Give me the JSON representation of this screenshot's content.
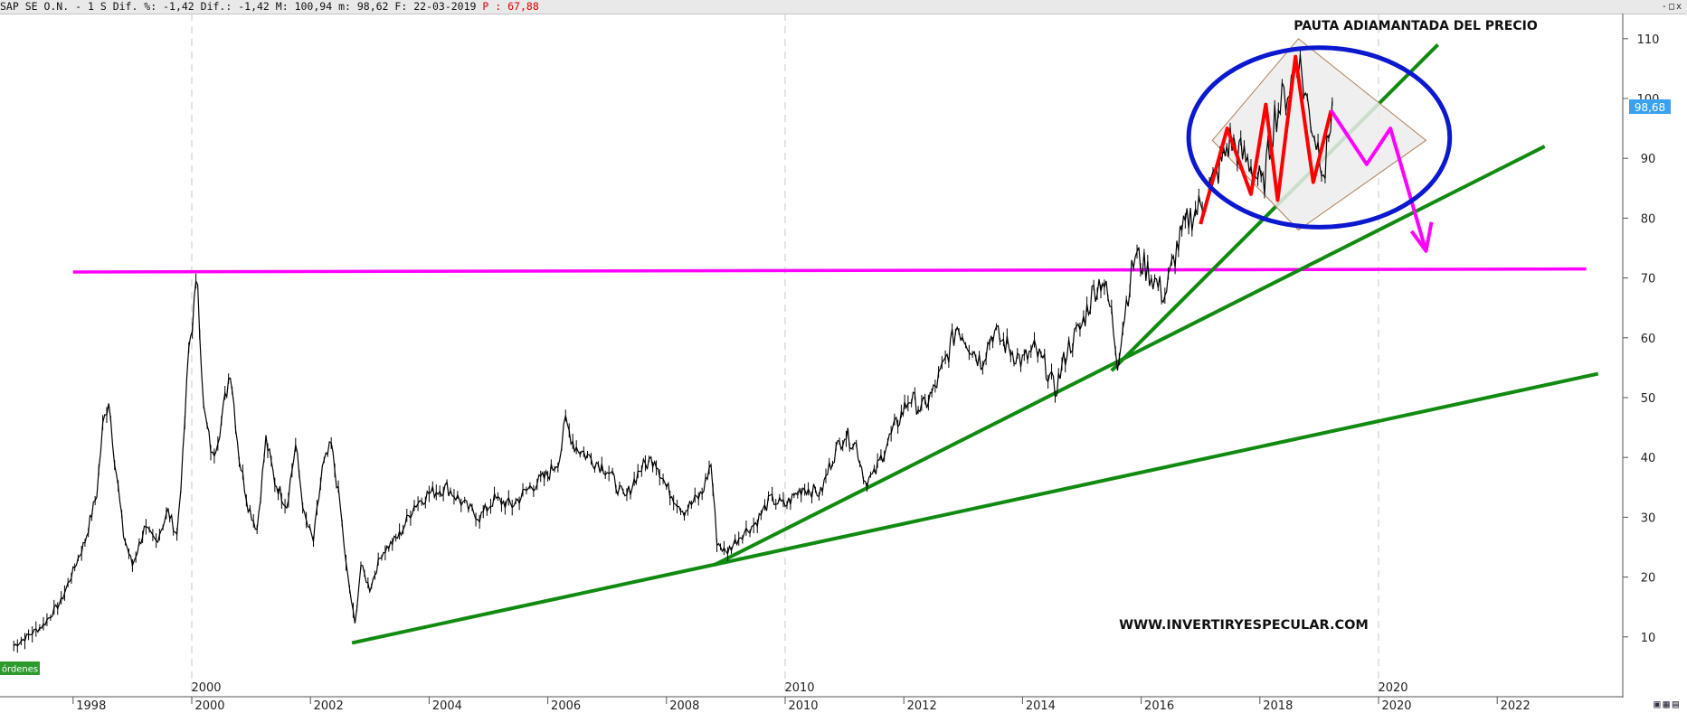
{
  "header": {
    "instrument": "SAP SE O.N.",
    "timeframe": "1 S",
    "dif_pct_label": "Dif. %:",
    "dif_pct": "-1,42",
    "dif_label": "Dif.:",
    "dif": "-1,42",
    "high_label": "M:",
    "high": "100,94",
    "low_label": "m:",
    "low": "98,62",
    "date_label": "F:",
    "date": "22-03-2019",
    "p_label": "P :",
    "p_value": "67,88"
  },
  "window_controls": [
    "-",
    "□",
    "x"
  ],
  "orders_button": "órdenes",
  "current_price_label": "98,68",
  "colors": {
    "price": "#000000",
    "support_line": "#ff00ff",
    "trend_lines": "#118a11",
    "ellipse": "#0b18cf",
    "highlight": "#ff0000",
    "projection": "#ff00ff",
    "diamond": "#b0805a",
    "price_badge": "#3aa0f0"
  },
  "annotations": {
    "title": "PAUTA ADIAMANTADA DEL PRECIO",
    "website": "WWW.INVERTIRYESPECULAR.COM"
  },
  "chart_data": {
    "type": "line",
    "title": "PAUTA ADIAMANTADA DEL PRECIO",
    "xlabel": "",
    "ylabel": "",
    "x_range": [
      1997.0,
      2023.7
    ],
    "ylim": [
      0,
      115
    ],
    "x_ticks": [
      "1998",
      "2000",
      "2002",
      "2004",
      "2006",
      "2008",
      "2010",
      "2012",
      "2014",
      "2016",
      "2018",
      "2020",
      "2022"
    ],
    "x_major_ticks": [
      "2000",
      "2010",
      "2020"
    ],
    "y_ticks": [
      10,
      20,
      30,
      40,
      50,
      60,
      70,
      80,
      90,
      100,
      110
    ],
    "grid": "vertical dashed at 2000, 2010, 2020",
    "series": [
      {
        "values": [
          [
            1997.0,
            8.5
          ],
          [
            1997.5,
            12
          ],
          [
            1997.8,
            16
          ],
          [
            1998.0,
            21
          ],
          [
            1998.2,
            26
          ],
          [
            1998.4,
            34
          ],
          [
            1998.5,
            45
          ],
          [
            1998.6,
            50
          ],
          [
            1998.7,
            40
          ],
          [
            1998.85,
            27
          ],
          [
            1999.0,
            22
          ],
          [
            1999.2,
            28
          ],
          [
            1999.4,
            26
          ],
          [
            1999.6,
            31
          ],
          [
            1999.75,
            27
          ],
          [
            1999.85,
            40
          ],
          [
            1999.95,
            58
          ],
          [
            2000.1,
            70
          ],
          [
            2000.2,
            48
          ],
          [
            2000.35,
            40
          ],
          [
            2000.5,
            46
          ],
          [
            2000.65,
            55
          ],
          [
            2000.8,
            40
          ],
          [
            2000.95,
            32
          ],
          [
            2001.1,
            28
          ],
          [
            2001.25,
            43
          ],
          [
            2001.4,
            36
          ],
          [
            2001.6,
            32
          ],
          [
            2001.75,
            42
          ],
          [
            2001.9,
            30
          ],
          [
            2002.05,
            26
          ],
          [
            2002.2,
            38
          ],
          [
            2002.35,
            42
          ],
          [
            2002.5,
            32
          ],
          [
            2002.6,
            22
          ],
          [
            2002.75,
            12
          ],
          [
            2002.85,
            22
          ],
          [
            2003.0,
            18
          ],
          [
            2003.2,
            24
          ],
          [
            2003.5,
            27
          ],
          [
            2003.75,
            32
          ],
          [
            2004.0,
            34
          ],
          [
            2004.3,
            35
          ],
          [
            2004.6,
            32
          ],
          [
            2004.85,
            30
          ],
          [
            2005.1,
            33
          ],
          [
            2005.4,
            32
          ],
          [
            2005.7,
            35
          ],
          [
            2006.0,
            37
          ],
          [
            2006.2,
            40
          ],
          [
            2006.3,
            46
          ],
          [
            2006.45,
            42
          ],
          [
            2006.7,
            40
          ],
          [
            2007.0,
            38
          ],
          [
            2007.3,
            33
          ],
          [
            2007.55,
            38
          ],
          [
            2007.8,
            40
          ],
          [
            2008.0,
            35
          ],
          [
            2008.3,
            31
          ],
          [
            2008.6,
            34
          ],
          [
            2008.75,
            39
          ],
          [
            2008.85,
            26
          ],
          [
            2009.0,
            24
          ],
          [
            2009.25,
            27
          ],
          [
            2009.5,
            29
          ],
          [
            2009.75,
            33
          ],
          [
            2010.0,
            32
          ],
          [
            2010.3,
            35
          ],
          [
            2010.6,
            34
          ],
          [
            2010.8,
            40
          ],
          [
            2011.0,
            44
          ],
          [
            2011.2,
            42
          ],
          [
            2011.35,
            36
          ],
          [
            2011.5,
            37
          ],
          [
            2011.7,
            42
          ],
          [
            2011.9,
            46
          ],
          [
            2012.1,
            50
          ],
          [
            2012.3,
            48
          ],
          [
            2012.5,
            51
          ],
          [
            2012.7,
            56
          ],
          [
            2012.9,
            62
          ],
          [
            2013.1,
            59
          ],
          [
            2013.3,
            56
          ],
          [
            2013.5,
            61
          ],
          [
            2013.8,
            58
          ],
          [
            2014.0,
            56
          ],
          [
            2014.2,
            58
          ],
          [
            2014.4,
            55
          ],
          [
            2014.55,
            51
          ],
          [
            2014.75,
            58
          ],
          [
            2015.0,
            62
          ],
          [
            2015.2,
            68
          ],
          [
            2015.35,
            70
          ],
          [
            2015.5,
            64
          ],
          [
            2015.6,
            56
          ],
          [
            2015.75,
            66
          ],
          [
            2015.9,
            74
          ],
          [
            2016.05,
            72
          ],
          [
            2016.2,
            70
          ],
          [
            2016.4,
            67
          ],
          [
            2016.6,
            75
          ],
          [
            2016.8,
            80
          ],
          [
            2017.0,
            82
          ],
          [
            2017.3,
            88
          ],
          [
            2017.5,
            93
          ],
          [
            2017.65,
            91
          ],
          [
            2017.85,
            89
          ],
          [
            2018.05,
            85
          ],
          [
            2018.25,
            97
          ],
          [
            2018.5,
            102
          ],
          [
            2018.65,
            107
          ],
          [
            2018.8,
            99
          ],
          [
            2018.95,
            93
          ],
          [
            2019.1,
            88
          ],
          [
            2019.22,
            99.5
          ]
        ]
      }
    ],
    "overlays": {
      "support_line": {
        "color": "#ff00ff",
        "points": [
          [
            1998.0,
            71
          ],
          [
            2023.5,
            71.5
          ]
        ]
      },
      "trend_lines": [
        {
          "color": "#118a11",
          "points": [
            [
              2002.7,
              9
            ],
            [
              2023.7,
              54
            ]
          ]
        },
        {
          "color": "#118a11",
          "points": [
            [
              2008.8,
              22
            ],
            [
              2022.8,
              92
            ]
          ]
        },
        {
          "color": "#118a11",
          "points": [
            [
              2015.5,
              54.5
            ],
            [
              2021.0,
              109
            ]
          ]
        }
      ],
      "diamond": {
        "points": [
          [
            2017.2,
            93
          ],
          [
            2018.65,
            110
          ],
          [
            2020.8,
            93
          ],
          [
            2018.65,
            78
          ]
        ]
      },
      "highlight_path": {
        "color": "#ff0000",
        "points": [
          [
            2017.0,
            79
          ],
          [
            2017.45,
            95
          ],
          [
            2017.85,
            84
          ],
          [
            2018.1,
            99
          ],
          [
            2018.3,
            83
          ],
          [
            2018.6,
            107
          ],
          [
            2018.9,
            86
          ],
          [
            2019.2,
            98
          ]
        ]
      },
      "projection_path": {
        "color": "#ff00ff",
        "points": [
          [
            2019.2,
            98
          ],
          [
            2019.8,
            89
          ],
          [
            2020.2,
            95
          ],
          [
            2020.8,
            74.5
          ]
        ]
      },
      "ellipse": {
        "color": "#0b18cf",
        "center": [
          2019.0,
          93.5
        ],
        "rx_years": 2.2,
        "ry_units": 15
      }
    }
  }
}
